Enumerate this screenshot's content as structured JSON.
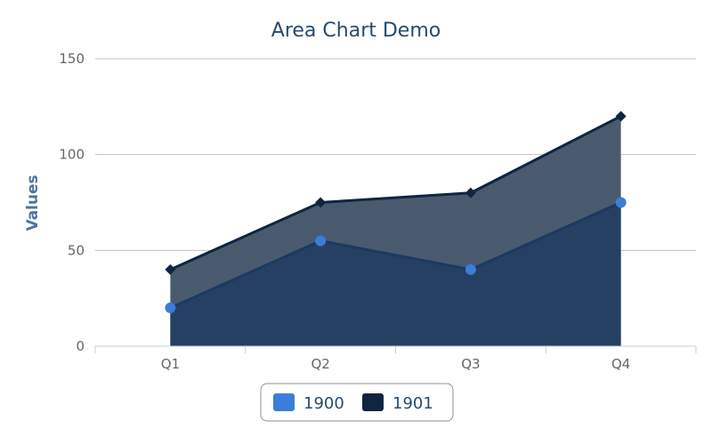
{
  "chart_data": {
    "type": "area",
    "title": "Area Chart Demo",
    "xlabel": "",
    "ylabel": "Values",
    "categories": [
      "Q1",
      "Q2",
      "Q3",
      "Q4"
    ],
    "ylim": [
      0,
      150
    ],
    "yticks": [
      0,
      50,
      100,
      150
    ],
    "grid": true,
    "legend": "bottom-center",
    "series": [
      {
        "name": "1900",
        "values": [
          20,
          55,
          40,
          75
        ],
        "color": "#3b7dd8",
        "fill": "#243f63",
        "marker": "circle"
      },
      {
        "name": "1901",
        "values": [
          40,
          75,
          80,
          120
        ],
        "color": "#0f2540",
        "fill": "#4a5a6e",
        "marker": "diamond"
      }
    ]
  }
}
